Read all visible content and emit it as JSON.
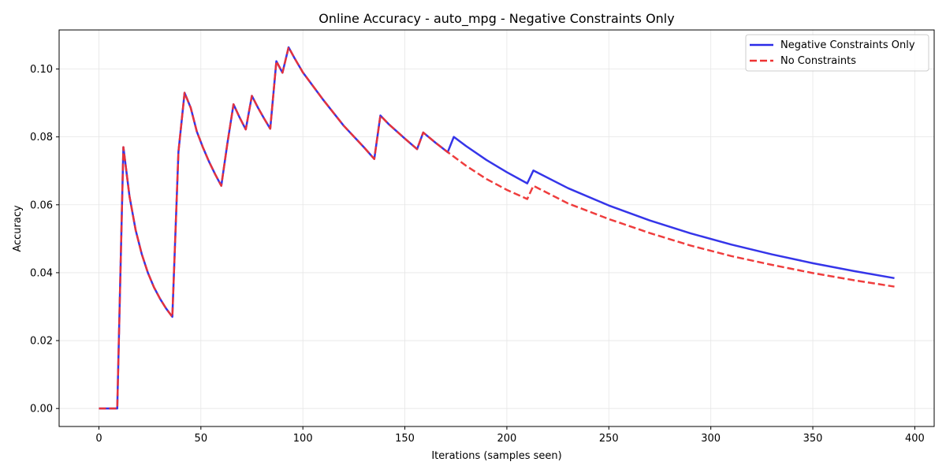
{
  "chart_data": {
    "type": "line",
    "title": "Online Accuracy - auto_mpg - Negative Constraints Only",
    "xlabel": "Iterations (samples seen)",
    "ylabel": "Accuracy",
    "xlim": [
      -19.5,
      409.5
    ],
    "ylim": [
      -0.0053,
      0.1115
    ],
    "xticks": [
      0,
      50,
      100,
      150,
      200,
      250,
      300,
      350,
      400
    ],
    "yticks": [
      0.0,
      0.02,
      0.04,
      0.06,
      0.08,
      0.1
    ],
    "xtick_labels": [
      "0",
      "50",
      "100",
      "150",
      "200",
      "250",
      "300",
      "350",
      "400"
    ],
    "ytick_labels": [
      "0.00",
      "0.02",
      "0.04",
      "0.06",
      "0.08",
      "0.10"
    ],
    "grid": true,
    "legend_position": "top-right",
    "series": [
      {
        "name": "Negative Constraints Only",
        "color": "#2a2ae8",
        "style": "solid",
        "points": [
          [
            0,
            0.0
          ],
          [
            9,
            0.0
          ],
          [
            12,
            0.077
          ],
          [
            15,
            0.0625
          ],
          [
            18,
            0.0526
          ],
          [
            21,
            0.0455
          ],
          [
            24,
            0.04
          ],
          [
            27,
            0.0357
          ],
          [
            30,
            0.0323
          ],
          [
            33,
            0.0294
          ],
          [
            36,
            0.027
          ],
          [
            39,
            0.0756
          ],
          [
            42,
            0.093
          ],
          [
            45,
            0.0886
          ],
          [
            48,
            0.0816
          ],
          [
            51,
            0.0769
          ],
          [
            54,
            0.0727
          ],
          [
            57,
            0.069
          ],
          [
            60,
            0.0656
          ],
          [
            63,
            0.0781
          ],
          [
            66,
            0.0896
          ],
          [
            69,
            0.0857
          ],
          [
            72,
            0.0822
          ],
          [
            75,
            0.0921
          ],
          [
            78,
            0.0886
          ],
          [
            81,
            0.0854
          ],
          [
            84,
            0.0824
          ],
          [
            87,
            0.1023
          ],
          [
            90,
            0.0989
          ],
          [
            93,
            0.1064
          ],
          [
            96,
            0.1031
          ],
          [
            100,
            0.099
          ],
          [
            110,
            0.0909
          ],
          [
            120,
            0.0833
          ],
          [
            130,
            0.0769
          ],
          [
            135,
            0.0735
          ],
          [
            138,
            0.0863
          ],
          [
            142,
            0.0838
          ],
          [
            150,
            0.0795
          ],
          [
            156,
            0.0764
          ],
          [
            159,
            0.0813
          ],
          [
            165,
            0.0783
          ],
          [
            171,
            0.0755
          ],
          [
            174,
            0.08
          ],
          [
            180,
            0.0773
          ],
          [
            190,
            0.0732
          ],
          [
            200,
            0.0696
          ],
          [
            210,
            0.0663
          ],
          [
            213,
            0.0701
          ],
          [
            230,
            0.0649
          ],
          [
            250,
            0.0598
          ],
          [
            270,
            0.0554
          ],
          [
            290,
            0.0516
          ],
          [
            310,
            0.0483
          ],
          [
            330,
            0.0454
          ],
          [
            350,
            0.0428
          ],
          [
            370,
            0.0405
          ],
          [
            390,
            0.0384
          ]
        ]
      },
      {
        "name": "No Constraints",
        "color": "#ee3333",
        "style": "dashed",
        "points": [
          [
            0,
            0.0
          ],
          [
            9,
            0.0
          ],
          [
            12,
            0.077
          ],
          [
            15,
            0.0625
          ],
          [
            18,
            0.0526
          ],
          [
            21,
            0.0455
          ],
          [
            24,
            0.04
          ],
          [
            27,
            0.0357
          ],
          [
            30,
            0.0323
          ],
          [
            33,
            0.0294
          ],
          [
            36,
            0.027
          ],
          [
            39,
            0.0756
          ],
          [
            42,
            0.093
          ],
          [
            45,
            0.0886
          ],
          [
            48,
            0.0816
          ],
          [
            51,
            0.0769
          ],
          [
            54,
            0.0727
          ],
          [
            57,
            0.069
          ],
          [
            60,
            0.0656
          ],
          [
            63,
            0.0781
          ],
          [
            66,
            0.0896
          ],
          [
            69,
            0.0857
          ],
          [
            72,
            0.0822
          ],
          [
            75,
            0.0921
          ],
          [
            78,
            0.0886
          ],
          [
            81,
            0.0854
          ],
          [
            84,
            0.0824
          ],
          [
            87,
            0.1023
          ],
          [
            90,
            0.0989
          ],
          [
            93,
            0.1064
          ],
          [
            96,
            0.1031
          ],
          [
            100,
            0.099
          ],
          [
            110,
            0.0909
          ],
          [
            120,
            0.0833
          ],
          [
            130,
            0.0769
          ],
          [
            135,
            0.0735
          ],
          [
            138,
            0.0863
          ],
          [
            142,
            0.0838
          ],
          [
            150,
            0.0795
          ],
          [
            156,
            0.0764
          ],
          [
            159,
            0.0813
          ],
          [
            165,
            0.0783
          ],
          [
            171,
            0.0755
          ],
          [
            180,
            0.0715
          ],
          [
            190,
            0.0676
          ],
          [
            200,
            0.0644
          ],
          [
            210,
            0.0617
          ],
          [
            213,
            0.0656
          ],
          [
            230,
            0.0604
          ],
          [
            250,
            0.0558
          ],
          [
            270,
            0.0517
          ],
          [
            290,
            0.048
          ],
          [
            310,
            0.0449
          ],
          [
            330,
            0.0423
          ],
          [
            350,
            0.0399
          ],
          [
            370,
            0.0378
          ],
          [
            390,
            0.0359
          ]
        ]
      }
    ]
  }
}
